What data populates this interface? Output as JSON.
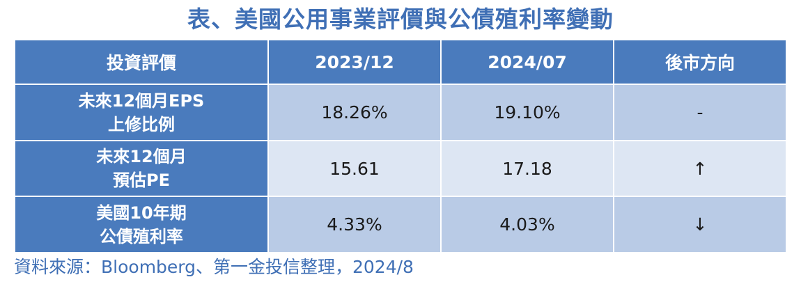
{
  "title": "表、美國公用事業評價與公債殖利率變動",
  "table": {
    "headers": [
      "投資評價",
      "2023/12",
      "2024/07",
      "後市方向"
    ],
    "rows": [
      {
        "label_line1": "未來12個月EPS",
        "label_line2": "上修比例",
        "v2023": "18.26%",
        "v2024": "19.10%",
        "outlook": "-"
      },
      {
        "label_line1": "未來12個月",
        "label_line2": "預估PE",
        "v2023": "15.61",
        "v2024": "17.18",
        "outlook": "↑"
      },
      {
        "label_line1": "美國10年期",
        "label_line2": "公債殖利率",
        "v2023": "4.33%",
        "v2024": "4.03%",
        "outlook": "↓"
      }
    ]
  },
  "source": "資料來源：Bloomberg、第一金投信整理，2024/8",
  "colors": {
    "header_bg": "#4a7bbd",
    "title_text": "#3f6fb5",
    "cell_dark": "#b9cbe6",
    "cell_light": "#dde6f3"
  }
}
